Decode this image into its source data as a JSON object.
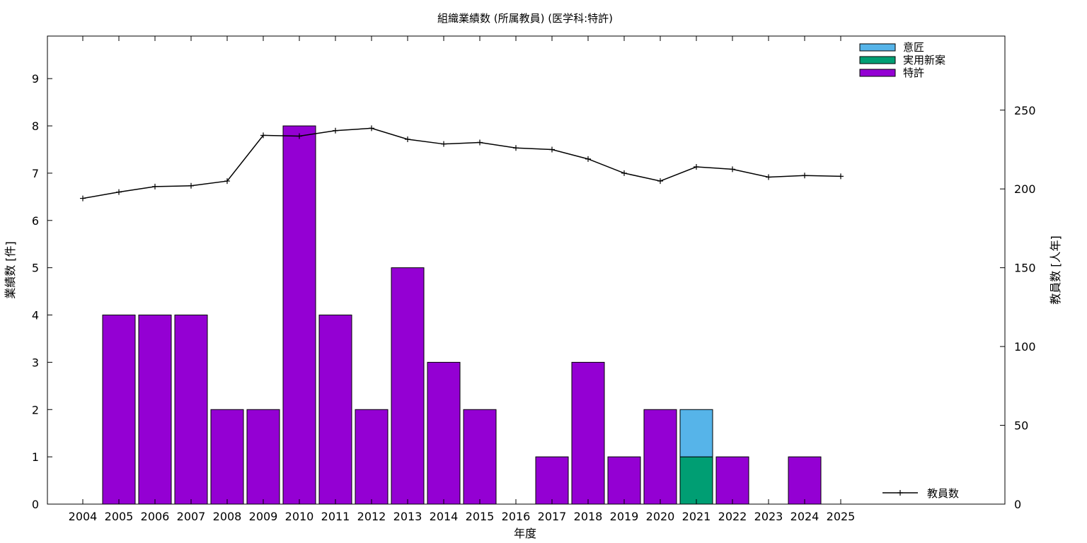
{
  "chart_data": {
    "type": "bar",
    "title": "組織業績数 (所属教員) (医学科:特許)",
    "xlabel": "年度",
    "ylabel": "業績数 [件]",
    "y2label": "教員数 [人年]",
    "categories": [
      "2004",
      "2005",
      "2006",
      "2007",
      "2008",
      "2009",
      "2010",
      "2011",
      "2012",
      "2013",
      "2014",
      "2015",
      "2016",
      "2017",
      "2018",
      "2019",
      "2020",
      "2021",
      "2022",
      "2023",
      "2024",
      "2025"
    ],
    "stacked": true,
    "series": [
      {
        "name": "特許",
        "color": "#9400d3",
        "values": [
          0,
          4,
          4,
          4,
          2,
          2,
          8,
          4,
          2,
          5,
          3,
          2,
          0,
          1,
          3,
          1,
          2,
          0,
          1,
          0,
          1,
          0
        ]
      },
      {
        "name": "実用新案",
        "color": "#009e73",
        "values": [
          0,
          0,
          0,
          0,
          0,
          0,
          0,
          0,
          0,
          0,
          0,
          0,
          0,
          0,
          0,
          0,
          0,
          1,
          0,
          0,
          0,
          0
        ]
      },
      {
        "name": "意匠",
        "color": "#56b4e9",
        "values": [
          0,
          0,
          0,
          0,
          0,
          0,
          0,
          0,
          0,
          0,
          0,
          0,
          0,
          0,
          0,
          0,
          0,
          1,
          0,
          0,
          0,
          0
        ]
      }
    ],
    "line_series": {
      "name": "教員数",
      "color": "#000000",
      "axis": "y2",
      "values": [
        194,
        198,
        201.5,
        202,
        205,
        234,
        233.5,
        237,
        238.5,
        231.5,
        228.5,
        229.5,
        226,
        225,
        219,
        210,
        205,
        214,
        212.5,
        207.5,
        208.5,
        208
      ]
    },
    "ylim": [
      0,
      9.9
    ],
    "yticks": [
      0,
      1,
      2,
      3,
      4,
      5,
      6,
      7,
      8,
      9
    ],
    "y2lim": [
      0,
      297
    ],
    "y2ticks": [
      0,
      50,
      100,
      150,
      200,
      250
    ],
    "legend_position": "top-right",
    "line_legend_position": "bottom-right",
    "grid": false
  }
}
